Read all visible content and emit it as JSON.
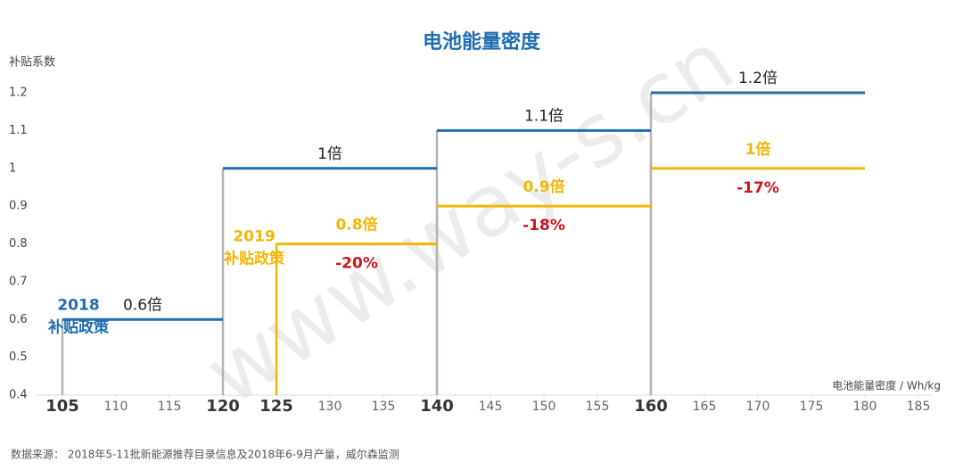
{
  "chart_data": {
    "type": "step",
    "title": "电池能量密度",
    "y_label": "补贴系数",
    "x_label": "电池能量密度 / Wh/kg",
    "watermark": "www.way-s.cn",
    "source": "数据来源： 2018年5-11批新能源推荐目录信息及2018年6-9月产量，威尔森监测",
    "xlim": [
      102,
      187
    ],
    "ylim": [
      0.4,
      1.2
    ],
    "xticks": [
      105,
      110,
      115,
      120,
      125,
      130,
      135,
      140,
      145,
      150,
      155,
      160,
      165,
      170,
      175,
      180,
      185
    ],
    "xticks_bold": [
      105,
      120,
      125,
      140,
      160
    ],
    "yticks": [
      0.4,
      0.5,
      0.6,
      0.7,
      0.8,
      0.9,
      1,
      1.1,
      1.2
    ],
    "grid": false,
    "change_color": "#d0141c",
    "series": [
      {
        "name_lines": [
          "2018",
          "补贴政策"
        ],
        "color": "#1f6eb0",
        "riser_color": "#b4b4b4",
        "label_color": "#222222",
        "starts": [
          105,
          120,
          140,
          160
        ],
        "ends": [
          120,
          140,
          160,
          180
        ],
        "values": [
          0.6,
          1,
          1.1,
          1.2
        ],
        "value_labels": [
          "0.6倍",
          "1倍",
          "1.1倍",
          "1.2倍"
        ]
      },
      {
        "name_lines": [
          "2019",
          "补贴政策"
        ],
        "color": "#f2b705",
        "riser_color": "#f2b705",
        "label_color": "#f2b705",
        "starts": [
          125,
          140,
          160
        ],
        "ends": [
          140,
          160,
          180
        ],
        "values": [
          0.8,
          0.9,
          1
        ],
        "value_labels": [
          "0.8倍",
          "0.9倍",
          "1倍"
        ],
        "changes": [
          "-20%",
          "-18%",
          "-17%"
        ]
      }
    ]
  }
}
